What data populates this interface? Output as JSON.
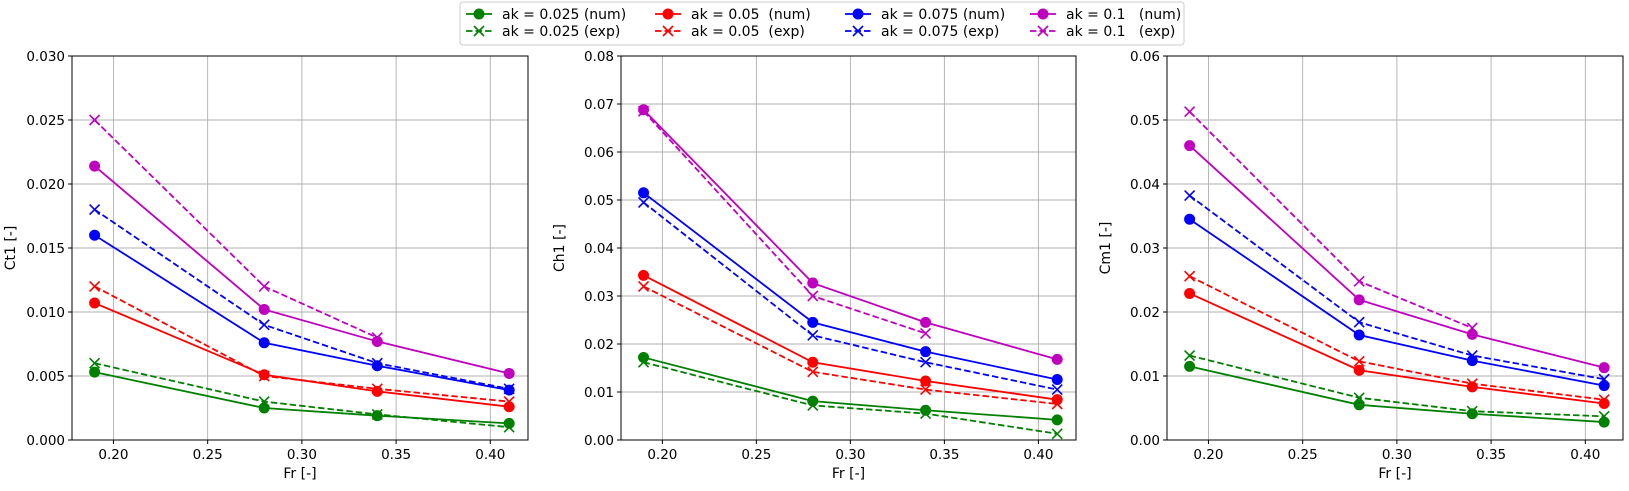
{
  "legend": {
    "items": [
      {
        "label": "ak = 0.025 (num)",
        "color": "#008000",
        "style": "solid",
        "marker": "o"
      },
      {
        "label": "ak = 0.025 (exp)",
        "color": "#008000",
        "style": "dashed",
        "marker": "x"
      },
      {
        "label": "ak = 0.05  (num)",
        "color": "#ff0000",
        "style": "solid",
        "marker": "o"
      },
      {
        "label": "ak = 0.05  (exp)",
        "color": "#ff0000",
        "style": "dashed",
        "marker": "x"
      },
      {
        "label": "ak = 0.075 (num)",
        "color": "#0000ff",
        "style": "solid",
        "marker": "o"
      },
      {
        "label": "ak = 0.075 (exp)",
        "color": "#0000ff",
        "style": "dashed",
        "marker": "x"
      },
      {
        "label": "ak = 0.1   (num)",
        "color": "#bf00bf",
        "style": "solid",
        "marker": "o"
      },
      {
        "label": "ak = 0.1   (exp)",
        "color": "#bf00bf",
        "style": "dashed",
        "marker": "x"
      }
    ],
    "placement": "top-center"
  },
  "chart_data": [
    {
      "type": "line",
      "xlabel": "Fr [-]",
      "ylabel": "Ct1 [-]",
      "xlim": [
        0.178,
        0.42
      ],
      "ylim": [
        0,
        0.03
      ],
      "xticks": [
        "0.20",
        "0.25",
        "0.30",
        "0.35",
        "0.40"
      ],
      "yticks": [
        "0.000",
        "0.005",
        "0.010",
        "0.015",
        "0.020",
        "0.025",
        "0.030"
      ],
      "grid": true,
      "x": [
        0.19,
        0.28,
        0.34,
        0.41
      ],
      "series": [
        {
          "name": "ak = 0.025 (num)",
          "values": [
            0.0053,
            0.0025,
            0.0019,
            0.0013
          ]
        },
        {
          "name": "ak = 0.025 (exp)",
          "values": [
            0.006,
            0.003,
            0.002,
            0.001
          ]
        },
        {
          "name": "ak = 0.05  (num)",
          "values": [
            0.0107,
            0.0051,
            0.0038,
            0.0026
          ]
        },
        {
          "name": "ak = 0.05  (exp)",
          "values": [
            0.012,
            0.005,
            0.004,
            0.003
          ]
        },
        {
          "name": "ak = 0.075 (num)",
          "values": [
            0.016,
            0.0076,
            0.0058,
            0.0039
          ]
        },
        {
          "name": "ak = 0.075 (exp)",
          "values": [
            0.018,
            0.009,
            0.006,
            0.004
          ]
        },
        {
          "name": "ak = 0.1   (num)",
          "values": [
            0.0214,
            0.0102,
            0.0077,
            0.0052
          ]
        },
        {
          "name": "ak = 0.1   (exp)",
          "values": [
            0.025,
            0.012,
            0.008,
            null
          ]
        }
      ]
    },
    {
      "type": "line",
      "xlabel": "Fr [-]",
      "ylabel": "Ch1 [-]",
      "xlim": [
        0.178,
        0.42
      ],
      "ylim": [
        0,
        0.08
      ],
      "xticks": [
        "0.20",
        "0.25",
        "0.30",
        "0.35",
        "0.40"
      ],
      "yticks": [
        "0.00",
        "0.01",
        "0.02",
        "0.03",
        "0.04",
        "0.05",
        "0.06",
        "0.07",
        "0.08"
      ],
      "grid": true,
      "x": [
        0.19,
        0.28,
        0.34,
        0.41
      ],
      "series": [
        {
          "name": "ak = 0.025 (num)",
          "values": [
            0.0172,
            0.0081,
            0.0062,
            0.0042
          ]
        },
        {
          "name": "ak = 0.025 (exp)",
          "values": [
            0.0162,
            0.0072,
            0.0055,
            0.0013
          ]
        },
        {
          "name": "ak = 0.05  (num)",
          "values": [
            0.0343,
            0.0162,
            0.0123,
            0.0084
          ]
        },
        {
          "name": "ak = 0.05  (exp)",
          "values": [
            0.032,
            0.0142,
            0.0105,
            0.0075
          ]
        },
        {
          "name": "ak = 0.075 (num)",
          "values": [
            0.0515,
            0.0245,
            0.0184,
            0.0126
          ]
        },
        {
          "name": "ak = 0.075 (exp)",
          "values": [
            0.0495,
            0.0218,
            0.0162,
            0.0105
          ]
        },
        {
          "name": "ak = 0.1   (num)",
          "values": [
            0.0688,
            0.0327,
            0.0245,
            0.0168
          ]
        },
        {
          "name": "ak = 0.1   (exp)",
          "values": [
            0.0685,
            0.03,
            0.0222,
            null
          ]
        }
      ]
    },
    {
      "type": "line",
      "xlabel": "Fr [-]",
      "ylabel": "Cm1 [-]",
      "xlim": [
        0.178,
        0.42
      ],
      "ylim": [
        0,
        0.06
      ],
      "xticks": [
        "0.20",
        "0.25",
        "0.30",
        "0.35",
        "0.40"
      ],
      "yticks": [
        "0.00",
        "0.01",
        "0.02",
        "0.03",
        "0.04",
        "0.05",
        "0.06"
      ],
      "grid": true,
      "x": [
        0.19,
        0.28,
        0.34,
        0.41
      ],
      "series": [
        {
          "name": "ak = 0.025 (num)",
          "values": [
            0.0115,
            0.0055,
            0.0041,
            0.0028
          ]
        },
        {
          "name": "ak = 0.025 (exp)",
          "values": [
            0.0132,
            0.0066,
            0.0045,
            0.0037
          ]
        },
        {
          "name": "ak = 0.05  (num)",
          "values": [
            0.0229,
            0.0109,
            0.0083,
            0.0057
          ]
        },
        {
          "name": "ak = 0.05  (exp)",
          "values": [
            0.0256,
            0.0123,
            0.0088,
            0.0063
          ]
        },
        {
          "name": "ak = 0.075 (num)",
          "values": [
            0.0345,
            0.0164,
            0.0124,
            0.0085
          ]
        },
        {
          "name": "ak = 0.075 (exp)",
          "values": [
            0.0382,
            0.0184,
            0.0132,
            0.0095
          ]
        },
        {
          "name": "ak = 0.1   (num)",
          "values": [
            0.046,
            0.0219,
            0.0165,
            0.0113
          ]
        },
        {
          "name": "ak = 0.1   (exp)",
          "values": [
            0.0513,
            0.0248,
            0.0175,
            null
          ]
        }
      ]
    }
  ]
}
